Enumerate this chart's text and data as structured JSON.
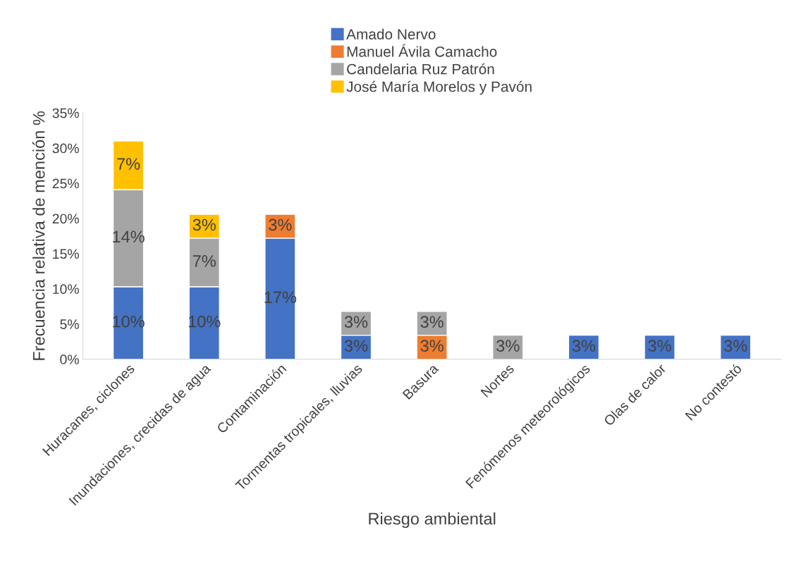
{
  "chart_data": {
    "type": "bar",
    "stacked": true,
    "xlabel": "Riesgo ambiental",
    "ylabel": "Frecuencia relativa de mención %",
    "categories": [
      "Huracanes, ciclones",
      "Inundaciones, crecidas de agua",
      "Contaminación",
      "Tormentas tropicales, lluvias",
      "Basura",
      "Nortes",
      "Fenómenos meteorológicos",
      "Olas de calor",
      "No contestó"
    ],
    "series": [
      {
        "name": "Amado Nervo",
        "color": "#4472c4",
        "values": [
          10.3,
          10.3,
          17.2,
          3.4,
          null,
          null,
          3.4,
          3.4,
          3.4
        ],
        "value_labels": [
          "10%",
          "10%",
          "17%",
          "3%",
          null,
          null,
          "3%",
          "3%",
          "3%"
        ]
      },
      {
        "name": "Manuel Ávila Camacho",
        "color": "#ed7d31",
        "values": [
          null,
          null,
          3.4,
          null,
          3.4,
          null,
          null,
          null,
          null
        ],
        "value_labels": [
          null,
          null,
          "3%",
          null,
          "3%",
          null,
          null,
          null,
          null
        ]
      },
      {
        "name": "Candelaria Ruz Patrón",
        "color": "#a5a5a5",
        "values": [
          13.8,
          6.9,
          null,
          3.4,
          3.4,
          3.4,
          null,
          null,
          null
        ],
        "value_labels": [
          "14%",
          "7%",
          null,
          "3%",
          "3%",
          "3%",
          null,
          null,
          null
        ]
      },
      {
        "name": "José María Morelos y Pavón",
        "color": "#ffc000",
        "values": [
          6.9,
          3.4,
          null,
          null,
          null,
          null,
          null,
          null,
          null
        ],
        "value_labels": [
          "7%",
          "3%",
          null,
          null,
          null,
          null,
          null,
          null,
          null
        ]
      }
    ],
    "ylim": [
      0,
      35
    ],
    "yticks": [
      {
        "value": 0,
        "label": "0%"
      },
      {
        "value": 5,
        "label": "5%"
      },
      {
        "value": 10,
        "label": "10%"
      },
      {
        "value": 15,
        "label": "15%"
      },
      {
        "value": 20,
        "label": "20%"
      },
      {
        "value": 25,
        "label": "25%"
      },
      {
        "value": 30,
        "label": "30%"
      },
      {
        "value": 35,
        "label": "35%"
      }
    ],
    "grid": false,
    "legend": "top"
  }
}
